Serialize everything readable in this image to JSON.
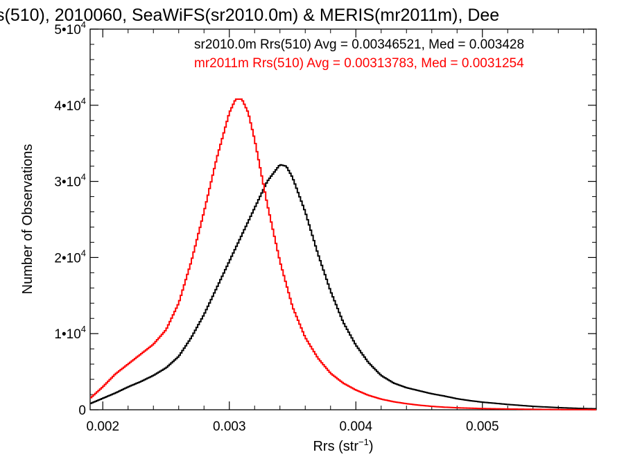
{
  "chart_data": {
    "type": "line",
    "title": "s(510), 2010060, SeaWiFS(sr2010.0m) & MERIS(mr2011m), Dee",
    "xlabel": "Rrs (str",
    "xlabel_sup": "−1",
    "xlabel_close": ")",
    "ylabel": "Number of Observations",
    "xlim": [
      0.0019,
      0.0059
    ],
    "ylim": [
      0,
      50000
    ],
    "x_ticks": [
      {
        "value": 0.002,
        "label": "0.002"
      },
      {
        "value": 0.003,
        "label": "0.003"
      },
      {
        "value": 0.004,
        "label": "0.004"
      },
      {
        "value": 0.005,
        "label": "0.005"
      }
    ],
    "y_ticks": [
      {
        "value": 0,
        "mant": "0",
        "exp": ""
      },
      {
        "value": 10000,
        "mant": "1•10",
        "exp": "4"
      },
      {
        "value": 20000,
        "mant": "2•10",
        "exp": "4"
      },
      {
        "value": 30000,
        "mant": "3•10",
        "exp": "4"
      },
      {
        "value": 40000,
        "mant": "4•10",
        "exp": "4"
      },
      {
        "value": 50000,
        "mant": "5•10",
        "exp": "4"
      }
    ],
    "grid": false,
    "legend_position": "top-right",
    "annotations": [
      {
        "text": "sr2010.0m Rrs(510) Avg = 0.00346521, Med = 0.003428",
        "color": "#000000"
      },
      {
        "text": "mr2011m Rrs(510) Avg = 0.00313783, Med = 0.0031254",
        "color": "#ff0000"
      }
    ],
    "series": [
      {
        "color": "#000000",
        "style": "step",
        "x": [
          0.0019,
          0.002,
          0.0021,
          0.0022,
          0.0023,
          0.0024,
          0.0025,
          0.0026,
          0.0027,
          0.0028,
          0.0029,
          0.003,
          0.0031,
          0.0032,
          0.0033,
          0.0034,
          0.00345,
          0.0035,
          0.0036,
          0.0037,
          0.0038,
          0.0039,
          0.004,
          0.0041,
          0.0042,
          0.0043,
          0.0044,
          0.0045,
          0.0046,
          0.0047,
          0.0048,
          0.0049,
          0.005,
          0.0052,
          0.0054,
          0.0056,
          0.0058,
          0.0059
        ],
        "y": [
          800,
          1500,
          2200,
          3000,
          3700,
          4500,
          5500,
          7000,
          9500,
          12500,
          16000,
          19500,
          23000,
          26500,
          30000,
          32200,
          32000,
          30500,
          26000,
          20500,
          15600,
          11500,
          8500,
          6200,
          4500,
          3500,
          2900,
          2500,
          2100,
          1800,
          1450,
          1200,
          1000,
          700,
          450,
          280,
          160,
          130
        ]
      },
      {
        "color": "#ff0000",
        "style": "step",
        "x": [
          0.0019,
          0.002,
          0.0021,
          0.0022,
          0.0023,
          0.0024,
          0.0025,
          0.0026,
          0.0027,
          0.0028,
          0.0029,
          0.003,
          0.00305,
          0.0031,
          0.00315,
          0.0032,
          0.0033,
          0.0034,
          0.0035,
          0.0036,
          0.0037,
          0.0038,
          0.0039,
          0.004,
          0.0041,
          0.0042,
          0.0043,
          0.0044,
          0.0045,
          0.0046,
          0.0047,
          0.0048,
          0.005,
          0.0052,
          0.0054,
          0.0056,
          0.0058,
          0.0059
        ],
        "y": [
          1500,
          3000,
          4700,
          6000,
          7300,
          8600,
          10500,
          14000,
          19500,
          26000,
          33000,
          39000,
          40800,
          40800,
          39000,
          35500,
          27000,
          19500,
          13500,
          9500,
          6800,
          4800,
          3500,
          2600,
          1900,
          1400,
          1050,
          800,
          600,
          450,
          340,
          260,
          160,
          100,
          60,
          30,
          20,
          15
        ]
      }
    ]
  }
}
